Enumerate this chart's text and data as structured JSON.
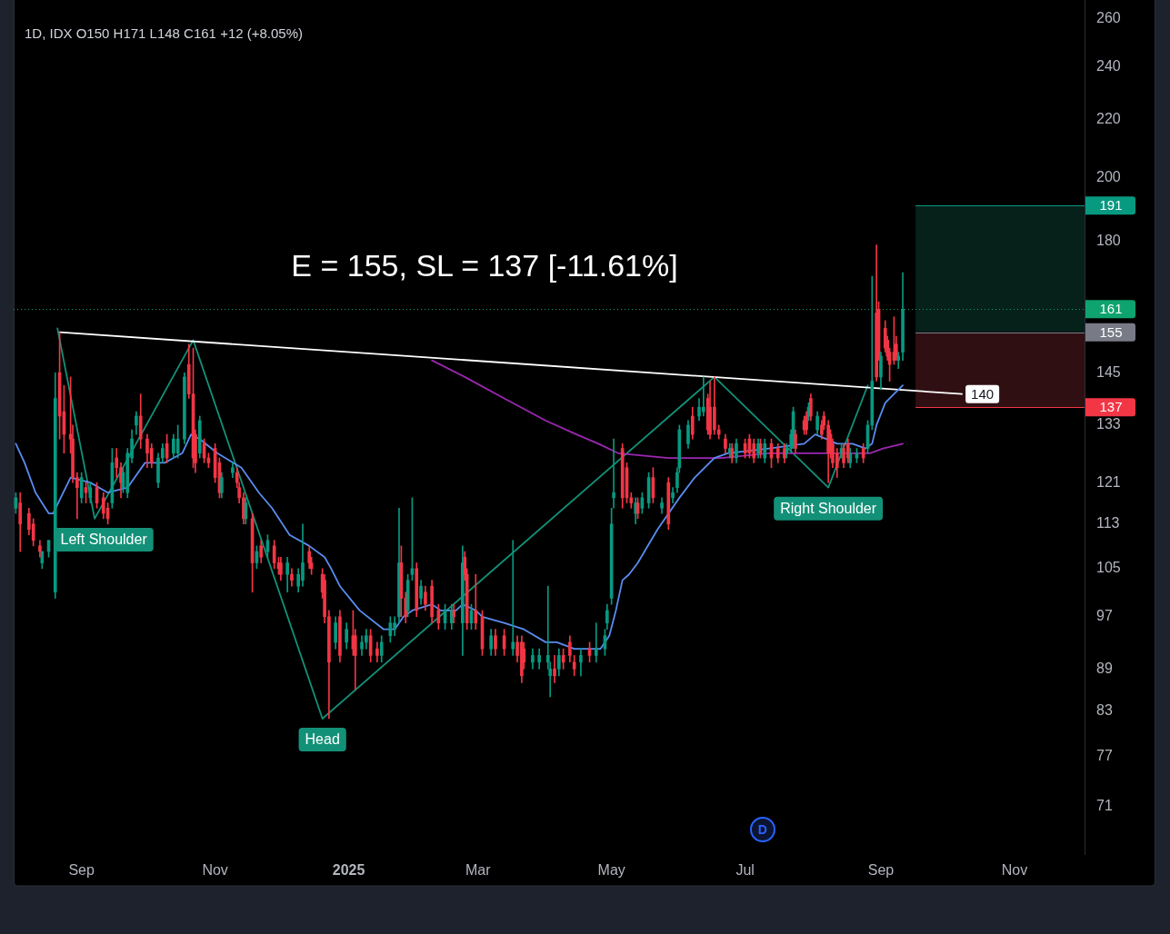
{
  "chart_data": {
    "type": "candlestick",
    "title": "1D, IDX O150 H171 L148 C161 +12 (+8.05%)",
    "x": [
      "2024-08-02",
      "2024-08-04",
      "2024-08-08",
      "2024-08-10",
      "2024-08-13",
      "2024-08-14",
      "2024-08-17",
      "2024-08-20",
      "2024-08-22",
      "2024-08-24",
      "2024-08-27",
      "2024-08-28",
      "2024-08-30",
      "2024-09-01",
      "2024-09-03",
      "2024-09-05",
      "2024-09-08",
      "2024-09-11",
      "2024-09-13",
      "2024-09-15",
      "2024-09-17",
      "2024-09-19",
      "2024-09-20",
      "2024-09-22",
      "2024-09-24",
      "2024-09-26",
      "2024-09-28",
      "2024-10-01",
      "2024-10-03",
      "2024-10-06",
      "2024-10-08",
      "2024-10-10",
      "2024-10-13",
      "2024-10-15",
      "2024-10-18",
      "2024-10-20",
      "2024-10-22",
      "2024-10-23",
      "2024-10-25",
      "2024-10-27",
      "2024-10-29",
      "2024-11-01",
      "2024-11-03",
      "2024-11-04",
      "2024-11-09",
      "2024-11-11",
      "2024-11-12",
      "2024-11-14",
      "2024-11-15",
      "2024-11-18",
      "2024-11-20",
      "2024-11-22",
      "2024-11-25",
      "2024-11-28",
      "2024-11-30",
      "2024-12-01",
      "2024-12-04",
      "2024-12-06",
      "2024-12-09",
      "2024-12-11",
      "2024-12-14",
      "2024-12-15",
      "2024-12-20",
      "2024-12-21",
      "2024-12-23",
      "2024-12-26",
      "2024-12-28",
      "2024-12-31",
      "2025-01-03",
      "2025-01-04",
      "2025-01-07",
      "2025-01-09",
      "2025-01-11",
      "2025-01-14",
      "2025-01-16",
      "2025-01-20",
      "2025-01-22",
      "2025-01-24",
      "2025-01-25",
      "2025-01-27",
      "2025-01-28",
      "2025-01-30",
      "2025-02-01",
      "2025-02-03",
      "2025-02-05",
      "2025-02-08",
      "2025-02-11",
      "2025-02-14",
      "2025-02-17",
      "2025-02-18",
      "2025-02-22",
      "2025-02-23",
      "2025-02-24",
      "2025-02-26",
      "2025-02-28",
      "2025-03-03",
      "2025-03-07",
      "2025-03-09",
      "2025-03-13",
      "2025-03-17",
      "2025-03-19",
      "2025-03-21",
      "2025-03-22",
      "2025-03-26",
      "2025-03-29",
      "2025-04-02",
      "2025-04-03",
      "2025-04-05",
      "2025-04-07",
      "2025-04-09",
      "2025-04-12",
      "2025-04-14",
      "2025-04-17",
      "2025-04-21",
      "2025-04-24",
      "2025-04-28",
      "2025-04-29",
      "2025-05-01",
      "2025-05-02",
      "2025-05-06",
      "2025-05-08",
      "2025-05-10",
      "2025-05-12",
      "2025-05-13",
      "2025-05-15",
      "2025-05-18",
      "2025-05-20",
      "2025-05-24",
      "2025-05-27",
      "2025-05-29",
      "2025-05-31",
      "2025-06-01",
      "2025-06-05",
      "2025-06-07",
      "2025-06-10",
      "2025-06-12",
      "2025-06-14",
      "2025-06-15",
      "2025-06-17",
      "2025-06-19",
      "2025-06-22",
      "2025-06-24",
      "2025-06-25",
      "2025-06-27",
      "2025-07-01",
      "2025-07-03",
      "2025-07-05",
      "2025-07-07",
      "2025-07-08",
      "2025-07-10",
      "2025-07-13",
      "2025-07-16",
      "2025-07-19",
      "2025-07-20",
      "2025-07-22",
      "2025-07-23",
      "2025-07-24",
      "2025-07-28",
      "2025-07-29",
      "2025-07-30",
      "2025-07-31",
      "2025-08-03",
      "2025-08-05",
      "2025-08-06",
      "2025-08-08",
      "2025-08-09",
      "2025-08-10",
      "2025-08-12",
      "2025-08-14",
      "2025-08-15",
      "2025-08-17",
      "2025-08-18",
      "2025-08-21",
      "2025-08-24",
      "2025-08-26",
      "2025-08-28",
      "2025-08-30",
      "2025-08-31",
      "2025-09-01",
      "2025-09-03",
      "2025-09-04",
      "2025-09-05",
      "2025-09-07",
      "2025-09-08",
      "2025-09-09",
      "2025-09-11"
    ],
    "ohlc": [
      [
        116,
        119,
        115,
        118
      ],
      [
        117,
        119,
        108,
        113
      ],
      [
        115,
        116,
        111,
        112
      ],
      [
        113,
        114,
        109,
        110
      ],
      [
        109,
        110,
        107,
        108
      ],
      [
        106,
        108,
        105,
        108
      ],
      [
        108,
        110,
        107,
        110
      ],
      [
        101,
        145,
        100,
        139
      ],
      [
        145,
        155,
        130,
        135
      ],
      [
        136,
        142,
        127,
        131
      ],
      [
        131,
        144,
        127,
        130
      ],
      [
        130,
        133,
        121,
        122
      ],
      [
        122,
        123,
        114,
        120
      ],
      [
        118,
        123,
        117,
        122
      ],
      [
        120,
        121,
        117,
        119
      ],
      [
        118,
        121,
        117,
        120
      ],
      [
        120,
        121,
        116,
        117
      ],
      [
        118,
        119,
        114,
        115
      ],
      [
        116,
        117,
        113,
        114
      ],
      [
        117,
        128,
        116,
        125
      ],
      [
        126,
        128,
        122,
        124
      ],
      [
        124,
        125,
        118,
        121
      ],
      [
        120,
        124,
        119,
        123
      ],
      [
        119,
        128,
        118,
        127
      ],
      [
        126,
        132,
        125,
        130
      ],
      [
        133,
        136,
        131,
        135
      ],
      [
        135,
        140,
        128,
        130
      ],
      [
        130,
        131,
        124,
        127
      ],
      [
        128,
        129,
        124,
        125
      ],
      [
        121,
        127,
        120,
        126
      ],
      [
        126,
        129,
        125,
        128
      ],
      [
        129,
        131,
        125,
        126
      ],
      [
        127,
        131,
        126,
        130
      ],
      [
        127,
        133,
        126,
        130
      ],
      [
        130,
        145,
        129,
        144
      ],
      [
        147,
        152,
        139,
        140
      ],
      [
        140,
        151,
        124,
        126
      ],
      [
        131,
        132,
        123,
        125
      ],
      [
        127,
        135,
        126,
        134
      ],
      [
        129,
        130,
        125,
        126
      ],
      [
        126,
        127,
        124,
        125
      ],
      [
        128,
        129,
        121,
        122
      ],
      [
        125,
        126,
        118,
        119
      ],
      [
        119,
        123,
        118,
        122
      ],
      [
        123,
        125,
        122,
        124
      ],
      [
        123,
        124,
        120,
        121
      ],
      [
        120,
        121,
        117,
        118
      ],
      [
        118,
        119,
        113,
        114
      ],
      [
        114,
        118,
        113,
        117
      ],
      [
        114,
        115,
        101,
        106
      ],
      [
        106,
        109,
        105,
        108
      ],
      [
        109,
        110,
        106,
        107
      ],
      [
        108,
        111,
        107,
        110
      ],
      [
        109,
        110,
        105,
        106
      ],
      [
        106,
        107,
        104,
        105
      ],
      [
        106,
        107,
        103,
        104
      ],
      [
        104,
        107,
        101,
        106
      ],
      [
        104,
        105,
        102,
        103
      ],
      [
        102,
        105,
        101,
        104
      ],
      [
        103,
        113,
        102,
        106
      ],
      [
        108,
        109,
        105,
        106
      ],
      [
        106,
        107,
        104,
        105
      ],
      [
        104,
        105,
        100,
        101
      ],
      [
        103,
        104,
        96,
        97
      ],
      [
        97,
        98,
        82,
        90
      ],
      [
        93,
        97,
        92,
        96
      ],
      [
        97,
        98,
        90,
        91
      ],
      [
        93,
        96,
        92,
        95
      ],
      [
        94,
        98,
        91,
        92
      ],
      [
        94,
        95,
        86,
        91
      ],
      [
        92,
        94,
        91,
        93
      ],
      [
        93,
        95,
        92,
        94
      ],
      [
        94,
        95,
        90,
        91
      ],
      [
        92,
        93,
        90,
        91
      ],
      [
        91,
        94,
        90,
        93
      ],
      [
        94,
        97,
        93,
        96
      ],
      [
        95,
        97,
        94,
        96
      ],
      [
        97,
        116,
        96,
        106
      ],
      [
        106,
        109,
        97,
        100
      ],
      [
        100,
        101,
        96,
        97
      ],
      [
        98,
        104,
        97,
        103
      ],
      [
        104,
        118,
        103,
        105
      ],
      [
        105,
        106,
        97,
        98
      ],
      [
        100,
        103,
        99,
        102
      ],
      [
        101,
        102,
        98,
        99
      ],
      [
        102,
        103,
        96,
        97
      ],
      [
        98,
        99,
        95,
        96
      ],
      [
        96,
        99,
        95,
        98
      ],
      [
        96,
        99,
        95,
        98
      ],
      [
        98,
        99,
        96,
        97
      ],
      [
        96,
        109,
        91,
        106
      ],
      [
        107,
        108,
        103,
        104
      ],
      [
        104,
        105,
        95,
        96
      ],
      [
        96,
        99,
        95,
        98
      ],
      [
        98,
        104,
        95,
        96
      ],
      [
        97,
        98,
        91,
        92
      ],
      [
        92,
        95,
        91,
        94
      ],
      [
        94,
        95,
        91,
        92
      ],
      [
        94,
        95,
        91,
        92
      ],
      [
        92,
        110,
        91,
        93
      ],
      [
        93,
        94,
        90,
        91
      ],
      [
        93,
        94,
        87,
        88
      ],
      [
        92,
        93,
        89,
        90
      ],
      [
        90,
        92,
        89,
        91
      ],
      [
        90,
        92,
        89,
        91
      ],
      [
        90,
        102,
        89,
        91
      ],
      [
        88,
        90,
        85,
        89
      ],
      [
        89,
        91,
        87,
        88
      ],
      [
        89,
        92,
        88,
        91
      ],
      [
        91,
        92,
        89,
        90
      ],
      [
        93,
        94,
        90,
        91
      ],
      [
        90,
        91,
        88,
        89
      ],
      [
        90,
        92,
        88,
        91
      ],
      [
        92,
        93,
        90,
        91
      ],
      [
        91,
        96,
        90,
        92
      ],
      [
        92,
        95,
        91,
        94
      ],
      [
        96,
        99,
        95,
        98
      ],
      [
        100,
        116,
        99,
        113
      ],
      [
        118,
        130,
        116,
        119
      ],
      [
        128,
        129,
        116,
        118
      ],
      [
        124,
        125,
        117,
        118
      ],
      [
        118,
        119,
        116,
        117
      ],
      [
        115,
        118,
        113,
        117
      ],
      [
        117,
        118,
        114,
        115
      ],
      [
        116,
        119,
        115,
        118
      ],
      [
        117,
        123,
        116,
        122
      ],
      [
        122,
        124,
        117,
        118
      ],
      [
        116,
        118,
        115,
        117
      ],
      [
        121,
        122,
        112,
        113
      ],
      [
        118,
        120,
        117,
        119
      ],
      [
        120,
        124,
        119,
        123
      ],
      [
        124,
        133,
        123,
        132
      ],
      [
        129,
        134,
        128,
        133
      ],
      [
        135,
        137,
        130,
        131
      ],
      [
        135,
        139,
        134,
        137
      ],
      [
        136,
        144,
        135,
        137
      ],
      [
        139,
        140,
        131,
        132
      ],
      [
        137,
        143,
        130,
        131
      ],
      [
        137,
        144,
        131,
        132
      ],
      [
        132,
        133,
        130,
        131
      ],
      [
        130,
        131,
        127,
        128
      ],
      [
        127,
        129,
        126,
        128
      ],
      [
        128,
        129,
        125,
        126
      ],
      [
        126,
        130,
        125,
        129
      ],
      [
        129,
        130,
        126,
        127
      ],
      [
        130,
        131,
        126,
        127
      ],
      [
        129,
        130,
        125,
        126
      ],
      [
        127,
        130,
        126,
        129
      ],
      [
        129,
        130,
        126,
        127
      ],
      [
        126,
        130,
        125,
        129
      ],
      [
        129,
        130,
        124,
        126
      ],
      [
        128,
        129,
        125,
        126
      ],
      [
        128,
        129,
        125,
        126
      ],
      [
        127,
        129,
        126,
        128
      ],
      [
        128,
        132,
        127,
        131
      ],
      [
        129,
        137,
        128,
        136
      ],
      [
        131,
        132,
        127,
        128
      ],
      [
        134,
        135,
        131,
        132
      ],
      [
        135,
        136,
        131,
        132
      ],
      [
        135,
        138,
        134,
        137
      ],
      [
        139,
        140,
        134,
        135
      ],
      [
        132,
        136,
        131,
        135
      ],
      [
        133,
        134,
        130,
        131
      ],
      [
        135,
        136,
        132,
        133
      ],
      [
        133,
        134,
        121,
        127
      ],
      [
        131,
        132,
        126,
        127
      ],
      [
        129,
        130,
        124,
        125
      ],
      [
        127,
        128,
        122,
        124
      ],
      [
        127,
        129,
        126,
        128
      ],
      [
        128,
        129,
        124,
        125
      ],
      [
        129,
        130,
        125,
        126
      ],
      [
        125,
        128,
        124,
        127
      ],
      [
        126,
        128,
        125,
        127
      ],
      [
        128,
        129,
        125,
        126
      ],
      [
        128,
        134,
        127,
        133
      ],
      [
        133,
        170,
        132,
        143
      ],
      [
        160,
        179,
        143,
        144
      ],
      [
        161,
        163,
        148,
        149
      ],
      [
        144,
        150,
        141,
        149
      ],
      [
        156,
        158,
        150,
        151
      ],
      [
        153,
        154,
        148,
        149
      ],
      [
        150,
        151,
        143,
        147
      ],
      [
        150,
        159,
        147,
        148
      ],
      [
        152,
        154,
        148,
        149
      ],
      [
        148,
        150,
        146,
        149
      ],
      [
        150,
        171,
        148,
        161
      ]
    ],
    "colors": [
      "#089981",
      "#f23645",
      "#f23645",
      "#f23645",
      "#f23645",
      "#089981",
      "#089981",
      "#089981",
      "#f23645",
      "#f23645",
      "#f23645",
      "#f23645",
      "#f23645",
      "#089981",
      "#f23645",
      "#089981",
      "#f23645",
      "#f23645",
      "#f23645",
      "#089981",
      "#f23645",
      "#f23645",
      "#089981",
      "#089981",
      "#089981",
      "#089981",
      "#f23645",
      "#f23645",
      "#f23645",
      "#089981",
      "#089981",
      "#f23645",
      "#089981",
      "#089981",
      "#089981",
      "#f23645",
      "#f23645",
      "#f23645",
      "#089981",
      "#f23645",
      "#f23645",
      "#f23645",
      "#f23645",
      "#089981",
      "#089981",
      "#f23645",
      "#f23645",
      "#f23645",
      "#089981",
      "#f23645",
      "#089981",
      "#f23645",
      "#089981",
      "#f23645",
      "#f23645",
      "#f23645",
      "#089981",
      "#f23645",
      "#089981",
      "#089981",
      "#f23645",
      "#f23645",
      "#f23645",
      "#f23645",
      "#f23645",
      "#089981",
      "#f23645",
      "#089981",
      "#f23645",
      "#f23645",
      "#089981",
      "#089981",
      "#f23645",
      "#f23645",
      "#089981",
      "#089981",
      "#089981",
      "#089981",
      "#f23645",
      "#f23645",
      "#089981",
      "#089981",
      "#f23645",
      "#089981",
      "#f23645",
      "#f23645",
      "#f23645",
      "#089981",
      "#089981",
      "#f23645",
      "#089981",
      "#f23645",
      "#f23645",
      "#089981",
      "#f23645",
      "#f23645",
      "#089981",
      "#f23645",
      "#f23645",
      "#089981",
      "#f23645",
      "#f23645",
      "#f23645",
      "#089981",
      "#089981",
      "#089981",
      "#089981",
      "#f23645",
      "#089981",
      "#f23645",
      "#f23645",
      "#f23645",
      "#089981",
      "#f23645",
      "#089981",
      "#089981",
      "#089981",
      "#089981",
      "#089981",
      "#f23645",
      "#f23645",
      "#f23645",
      "#089981",
      "#f23645",
      "#089981",
      "#089981",
      "#f23645",
      "#089981",
      "#f23645",
      "#089981",
      "#089981",
      "#089981",
      "#089981",
      "#f23645",
      "#089981",
      "#089981",
      "#f23645",
      "#f23645",
      "#f23645",
      "#f23645",
      "#f23645",
      "#089981",
      "#f23645",
      "#089981",
      "#f23645",
      "#f23645",
      "#f23645",
      "#089981",
      "#f23645",
      "#089981",
      "#f23645",
      "#f23645",
      "#f23645",
      "#089981",
      "#089981",
      "#089981",
      "#f23645",
      "#f23645",
      "#f23645",
      "#089981",
      "#f23645",
      "#089981",
      "#f23645",
      "#f23645",
      "#f23645",
      "#f23645",
      "#f23645",
      "#f23645",
      "#089981",
      "#f23645",
      "#f23645",
      "#089981",
      "#089981",
      "#f23645",
      "#089981",
      "#089981",
      "#f23645",
      "#f23645",
      "#089981",
      "#f23645",
      "#f23645",
      "#f23645",
      "#f23645",
      "#f23645",
      "#089981",
      "#089981"
    ],
    "series": [
      {
        "type": "line",
        "color": "#5a8cf0",
        "x": [
          "2024-08-02",
          "2024-08-06",
          "2024-08-11",
          "2024-08-17",
          "2024-08-19",
          "2024-08-27",
          "2024-09-05",
          "2024-09-13",
          "2024-09-22",
          "2024-09-30",
          "2024-10-09",
          "2024-10-17",
          "2024-10-21",
          "2024-10-25",
          "2024-11-02",
          "2024-11-13",
          "2024-11-21",
          "2024-11-27",
          "2024-12-05",
          "2024-12-14",
          "2024-12-21",
          "2024-12-24",
          "2024-12-28",
          "2025-01-06",
          "2025-01-17",
          "2025-01-22",
          "2025-01-26",
          "2025-01-30",
          "2025-02-08",
          "2025-02-12",
          "2025-02-19",
          "2025-02-22",
          "2025-02-28",
          "2025-03-03",
          "2025-03-13",
          "2025-03-22",
          "2025-04-01",
          "2025-04-06",
          "2025-04-14",
          "2025-04-26",
          "2025-04-30",
          "2025-05-03",
          "2025-05-06",
          "2025-05-09",
          "2025-05-13",
          "2025-05-22",
          "2025-06-01",
          "2025-06-08",
          "2025-06-17",
          "2025-06-23",
          "2025-07-12",
          "2025-07-28",
          "2025-08-02",
          "2025-08-07",
          "2025-08-12",
          "2025-08-19",
          "2025-08-25",
          "2025-08-28",
          "2025-08-30",
          "2025-09-03",
          "2025-09-07",
          "2025-09-11"
        ],
        "values": [
          129,
          125,
          119,
          115,
          115,
          122,
          121,
          119,
          120,
          125,
          125,
          127,
          131,
          130,
          127,
          124,
          119,
          116,
          111,
          109,
          107,
          105,
          102,
          98,
          95,
          95,
          97,
          98,
          99,
          98,
          98,
          99,
          98,
          97,
          96,
          95,
          93,
          93,
          92,
          92,
          94,
          98,
          103,
          104,
          106,
          112,
          118,
          122,
          126,
          127,
          128,
          129,
          131,
          130,
          129,
          129,
          128,
          129,
          133,
          138,
          140,
          142
        ]
      },
      {
        "type": "line",
        "color": "#9c27b0",
        "x": [
          "2025-02-08",
          "2025-02-23",
          "2025-03-13",
          "2025-04-01",
          "2025-04-15",
          "2025-04-25",
          "2025-05-04",
          "2025-05-27",
          "2025-06-07",
          "2025-06-20",
          "2025-07-12",
          "2025-07-25",
          "2025-08-07",
          "2025-08-17",
          "2025-08-27",
          "2025-09-02",
          "2025-09-11"
        ],
        "values": [
          148,
          144,
          139,
          134,
          131,
          129,
          127,
          126,
          126,
          126,
          127,
          127,
          127,
          127,
          127,
          128,
          129
        ]
      },
      {
        "type": "line",
        "color": "#ffffff",
        "x": [
          "2024-08-22",
          "2025-10-08"
        ],
        "values": [
          155,
          140
        ],
        "value_labels": [
          null,
          "140"
        ]
      },
      {
        "type": "line",
        "color": "#139178",
        "x": [
          "2024-08-21",
          "2024-09-07",
          "2024-10-22",
          "2024-12-20",
          "2025-06-17",
          "2025-08-08",
          "2025-08-26"
        ],
        "values": [
          156,
          114,
          153,
          82,
          144,
          120,
          142
        ]
      }
    ],
    "xlim": [
      "2024-08-01",
      "2025-12-03"
    ],
    "xticks": [
      {
        "value": "2024-09",
        "label": "Sep"
      },
      {
        "value": "2024-11",
        "label": "Nov"
      },
      {
        "value": "2025-01",
        "label": "2025"
      },
      {
        "value": "2025-03",
        "label": "Mar"
      },
      {
        "value": "2025-05",
        "label": "May"
      },
      {
        "value": "2025-07",
        "label": "Jul"
      },
      {
        "value": "2025-09",
        "label": "Sep"
      },
      {
        "value": "2025-11",
        "label": "Nov"
      }
    ],
    "ylim": [
      65.6,
      268
    ],
    "yticks": [
      71,
      77,
      83,
      89,
      97,
      105,
      113,
      121,
      133,
      145,
      180,
      200,
      220,
      240,
      260
    ],
    "log": "y",
    "ref_lines": [
      {
        "axis": "y",
        "value": 191,
        "label": "191",
        "color": "#089981"
      },
      {
        "axis": "y",
        "value": 161,
        "label": "161",
        "color": "#0fa36f",
        "line_style": "dotted"
      },
      {
        "axis": "y",
        "value": 155,
        "label": "155",
        "color": "#787b86"
      },
      {
        "axis": "y",
        "value": 137,
        "label": "137",
        "color": "#f23645"
      }
    ],
    "bands": [
      {
        "axis": "y",
        "from": 155,
        "to": 191,
        "color": "#06201a"
      },
      {
        "axis": "y",
        "from": 137,
        "to": 155,
        "color": "#300f12"
      }
    ],
    "annotations": [
      "E = 155, SL = 137 [-11.61%]",
      {
        "text": "Left Shoulder",
        "x": "2024-09-07",
        "y": 114
      },
      {
        "text": "Head",
        "x": "2024-12-20",
        "y": 82
      },
      {
        "text": "Right Shoulder",
        "x": "2025-08-08",
        "y": 120
      },
      {
        "text": "D",
        "x": "2025-07-09"
      }
    ]
  }
}
